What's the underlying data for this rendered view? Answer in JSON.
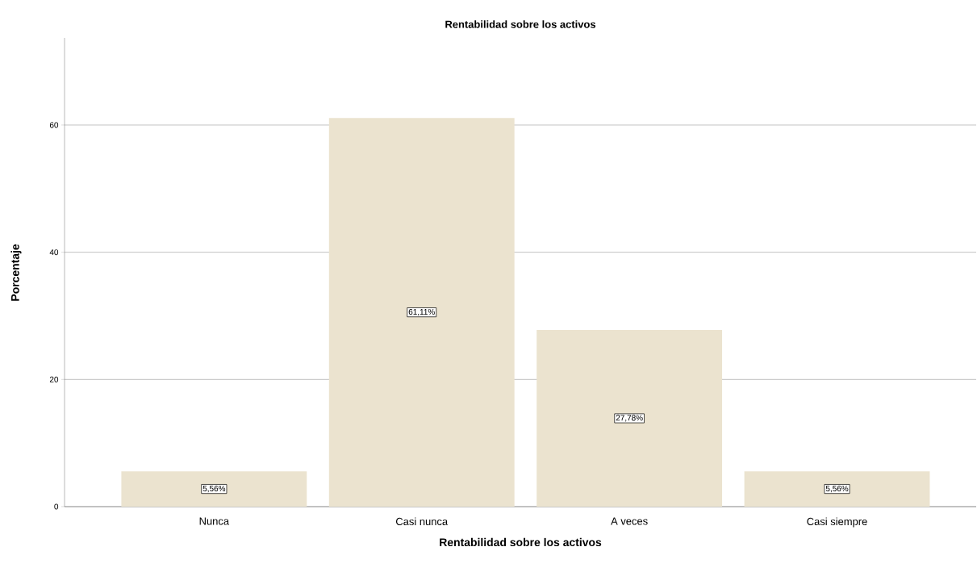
{
  "chart_data": {
    "type": "bar",
    "title": "Rentabilidad sobre los activos",
    "xlabel": "Rentabilidad sobre los activos",
    "ylabel": "Porcentaje",
    "categories": [
      "Nunca",
      "Casi nunca",
      "A veces",
      "Casi siempre"
    ],
    "values": [
      5.56,
      61.11,
      27.78,
      5.56
    ],
    "value_labels": [
      "5,56%",
      "61,11%",
      "27,78%",
      "5,56%"
    ],
    "color": "#ebe3cf",
    "ylim": [
      0,
      73.7
    ],
    "yticks": [
      0,
      20,
      40,
      60
    ],
    "grid": "y"
  }
}
